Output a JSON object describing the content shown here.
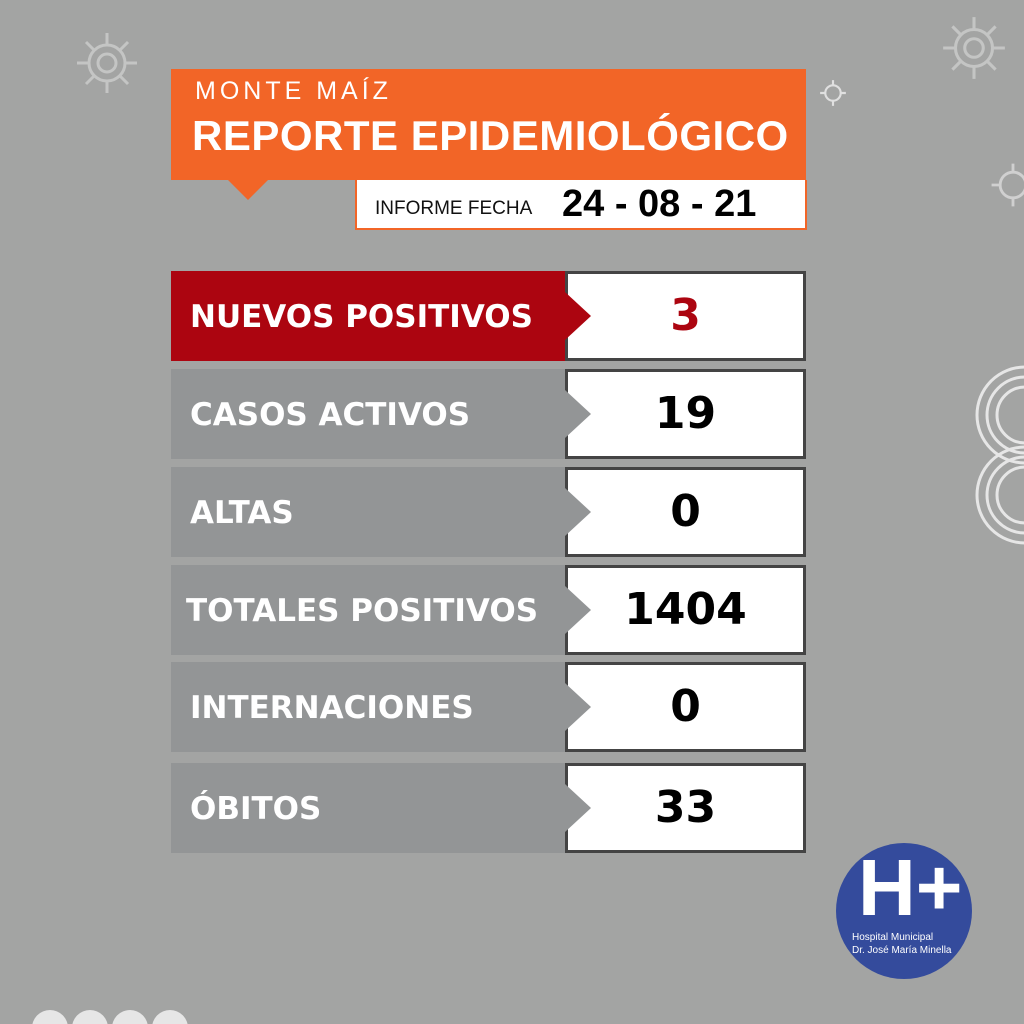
{
  "header": {
    "subtitle": "MONTE MAÍZ",
    "title": "REPORTE EPIDEMIOLÓGICO",
    "date_label": "INFORME FECHA",
    "date_value": "24 - 08 - 21"
  },
  "rows": [
    {
      "label": "NUEVOS POSITIVOS",
      "value": "3"
    },
    {
      "label": "CASOS ACTIVOS",
      "value": "19"
    },
    {
      "label": "ALTAS",
      "value": "0"
    },
    {
      "label": "TOTALES POSITIVOS",
      "value": "1404"
    },
    {
      "label": "INTERNACIONES",
      "value": "0"
    },
    {
      "label": "ÓBITOS",
      "value": "33"
    }
  ],
  "logo": {
    "mark": "H+",
    "line1": "Hospital Municipal",
    "line2": "Dr. José María Minella"
  },
  "colors": {
    "background": "#a3a4a3",
    "header": "#f26527",
    "highlight": "#ac0510",
    "logo": "#344b9c"
  }
}
